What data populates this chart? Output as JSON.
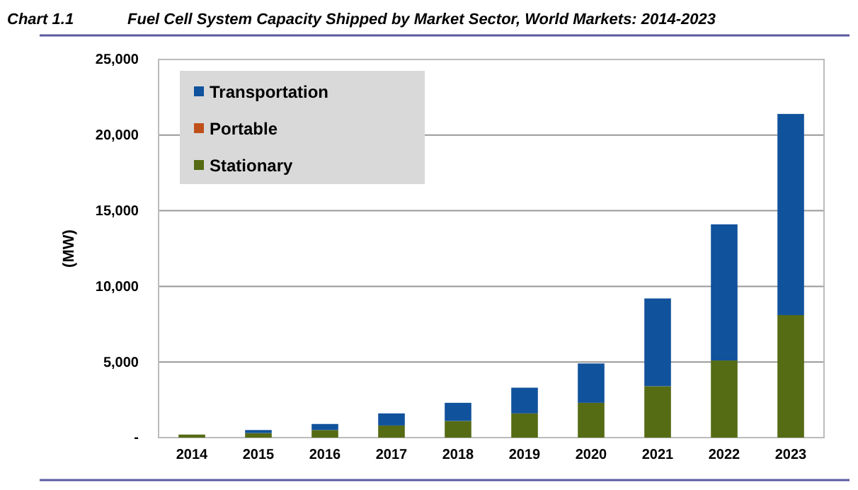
{
  "chart_data": {
    "type": "bar",
    "title": "Fuel Cell System Capacity Shipped by Market Sector, World Markets: 2014-2023",
    "annotations": [
      "Chart 1.1"
    ],
    "ylabel": "(MW)",
    "categories": [
      "2014",
      "2015",
      "2016",
      "2017",
      "2018",
      "2019",
      "2020",
      "2021",
      "2022",
      "2023"
    ],
    "series": [
      {
        "name": "Stationary",
        "color": "#556b14",
        "values": [
          200,
          300,
          500,
          800,
          1100,
          1600,
          2300,
          3400,
          5100,
          8100
        ]
      },
      {
        "name": "Portable",
        "color": "#c0501a",
        "values": [
          0,
          0,
          0,
          0,
          0,
          0,
          0,
          0,
          0,
          0
        ]
      },
      {
        "name": "Transportation",
        "color": "#11529c",
        "values": [
          0,
          200,
          400,
          800,
          1200,
          1700,
          2600,
          5800,
          9000,
          13300
        ]
      }
    ],
    "stacked": true,
    "ylim": [
      0,
      25000
    ],
    "yticks": [
      {
        "value": 0,
        "label": "-"
      },
      {
        "value": 5000,
        "label": "5,000"
      },
      {
        "value": 10000,
        "label": "10,000"
      },
      {
        "value": 15000,
        "label": "15,000"
      },
      {
        "value": 20000,
        "label": "20,000"
      },
      {
        "value": 25000,
        "label": "25,000"
      }
    ],
    "grid": "y",
    "legend": "top left"
  }
}
